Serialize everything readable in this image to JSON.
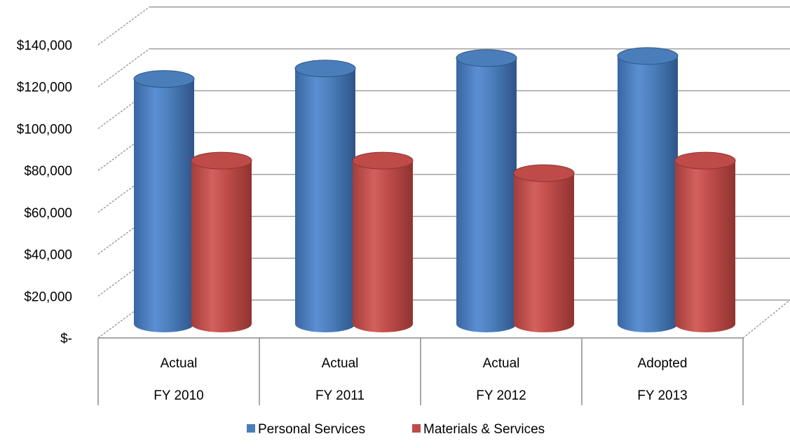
{
  "chart_data": {
    "type": "bar",
    "style": "3d-cylinder",
    "categories": [
      [
        "Actual",
        "FY 2010"
      ],
      [
        "Actual",
        "FY 2011"
      ],
      [
        "Actual",
        "FY 2012"
      ],
      [
        "Adopted",
        "FY 2013"
      ]
    ],
    "series": [
      {
        "name": "Personal Services",
        "color": "#4a7ebb",
        "values": [
          117000,
          122000,
          127000,
          128000
        ]
      },
      {
        "name": "Materials & Services",
        "color": "#be4b48",
        "values": [
          78000,
          78000,
          72000,
          78000
        ]
      }
    ],
    "y_tick_labels": [
      "$-",
      "$20,000",
      "$40,000",
      "$60,000",
      "$80,000",
      "$100,000",
      "$120,000",
      "$140,000"
    ],
    "y_ticks": [
      0,
      20000,
      40000,
      60000,
      80000,
      100000,
      120000,
      140000
    ],
    "ylim": [
      0,
      140000
    ],
    "grid": true,
    "legend": "bottom"
  }
}
